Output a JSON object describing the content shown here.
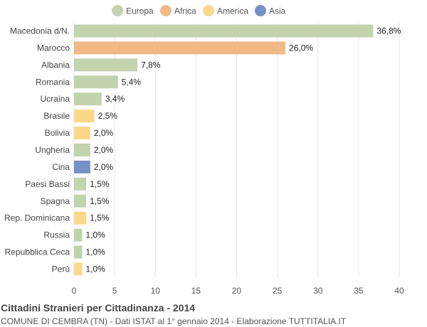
{
  "chart_data": {
    "type": "bar",
    "orientation": "horizontal",
    "title": "Cittadini Stranieri per Cittadinanza - 2014",
    "subtitle": "COMUNE DI CEMBRA (TN) - Dati ISTAT al 1° gennaio 2014 - Elaborazione TUTTITALIA.IT",
    "xlim": [
      0,
      40
    ],
    "xticks": [
      0,
      5,
      10,
      15,
      20,
      25,
      30,
      35,
      40
    ],
    "grid": true,
    "legend_position": "top-center",
    "legend": [
      {
        "name": "Europa",
        "color": "#c2d3ae"
      },
      {
        "name": "Africa",
        "color": "#f0b986"
      },
      {
        "name": "America",
        "color": "#fdd78a"
      },
      {
        "name": "Asia",
        "color": "#7591c8"
      }
    ],
    "categories": [
      "Macedonia d/N.",
      "Marocco",
      "Albania",
      "Romania",
      "Ucraina",
      "Brasile",
      "Bolivia",
      "Ungheria",
      "Cina",
      "Paesi Bassi",
      "Spagna",
      "Rep. Dominicana",
      "Russia",
      "Repubblica Ceca",
      "Perù"
    ],
    "values": [
      36.8,
      26.0,
      7.8,
      5.4,
      3.4,
      2.5,
      2.0,
      2.0,
      2.0,
      1.5,
      1.5,
      1.5,
      1.0,
      1.0,
      1.0
    ],
    "value_labels": [
      "36,8%",
      "26,0%",
      "7,8%",
      "5,4%",
      "3,4%",
      "2,5%",
      "2,0%",
      "2,0%",
      "2,0%",
      "1,5%",
      "1,5%",
      "1,5%",
      "1,0%",
      "1,0%",
      "1,0%"
    ],
    "groups": [
      "Europa",
      "Africa",
      "Europa",
      "Europa",
      "Europa",
      "America",
      "America",
      "Europa",
      "Asia",
      "Europa",
      "Europa",
      "America",
      "Europa",
      "Europa",
      "America"
    ]
  }
}
